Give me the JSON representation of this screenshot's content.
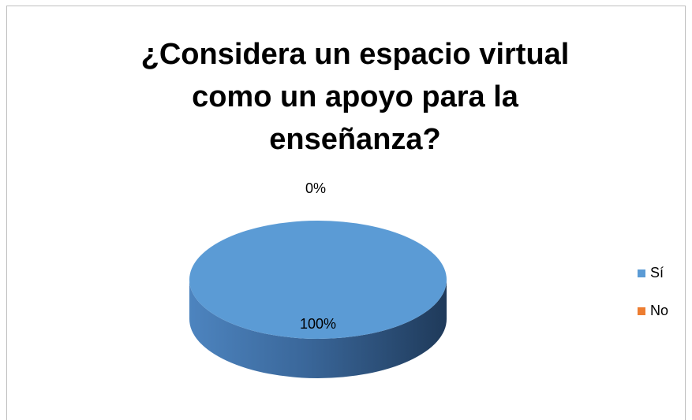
{
  "chart_data": {
    "type": "pie",
    "title": "¿Considera un espacio virtual como un apoyo para la enseñanza?",
    "categories": [
      "Sí",
      "No"
    ],
    "values": [
      100,
      0
    ],
    "value_labels": [
      "100%",
      "0%"
    ],
    "colors": [
      "#5b9bd5",
      "#ed7d31"
    ],
    "legend": "right"
  }
}
